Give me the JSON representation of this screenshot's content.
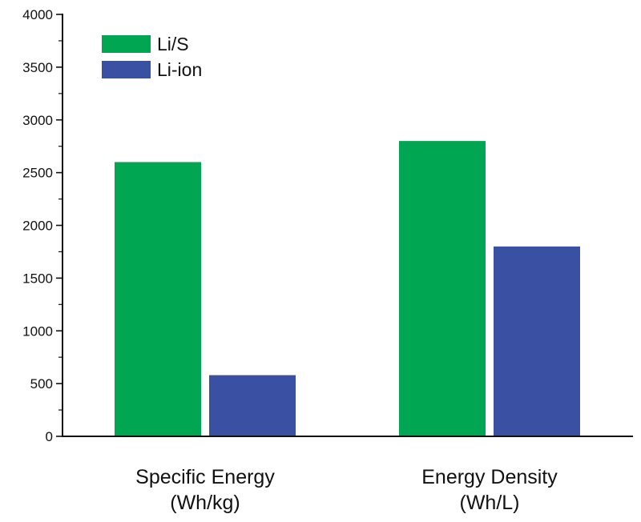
{
  "chart_data": {
    "type": "bar",
    "title": "",
    "xlabel": "",
    "ylabel": "",
    "categories": [
      [
        "Specific Energy",
        "(Wh/kg)"
      ],
      [
        "Energy Density",
        "(Wh/L)"
      ]
    ],
    "series": [
      {
        "name": "Li/S",
        "values": [
          2600,
          2800
        ],
        "color": "#00a651"
      },
      {
        "name": "Li-ion",
        "values": [
          580,
          1800
        ],
        "color": "#3a51a3"
      }
    ],
    "ylim": [
      0,
      4000
    ],
    "yticks": [
      0,
      500,
      1000,
      1500,
      2000,
      2500,
      3000,
      3500,
      4000
    ],
    "grid": false,
    "legend": "top-left"
  }
}
